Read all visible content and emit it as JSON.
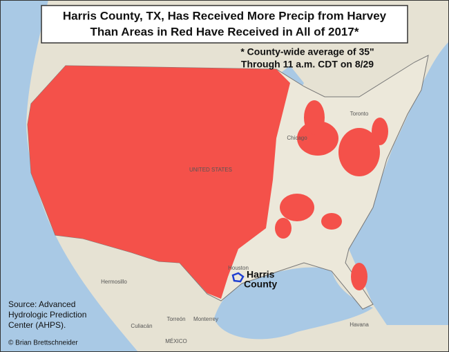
{
  "header": {
    "title_lines": [
      "Harris County, TX, Has Received More Precip from Harvey",
      "Than Areas in Red Have Received in All of 2017*"
    ]
  },
  "note": {
    "lines": [
      "* County-wide average of 35\"",
      "Through 11 a.m. CDT on 8/29"
    ]
  },
  "annotation": {
    "lines": [
      "Harris",
      "County"
    ]
  },
  "source": {
    "lines": [
      "Source: Advanced",
      "Hydrologic Prediction",
      "Center (AHPS)."
    ]
  },
  "credit": "© Brian Brettschneider",
  "map_labels": [
    "UNITED STATES",
    "MÉXICO",
    "Hermosillo",
    "Monterrey",
    "Torreón",
    "Culiacán",
    "Havana",
    "Toronto",
    "Chicago",
    "Houston"
  ]
}
